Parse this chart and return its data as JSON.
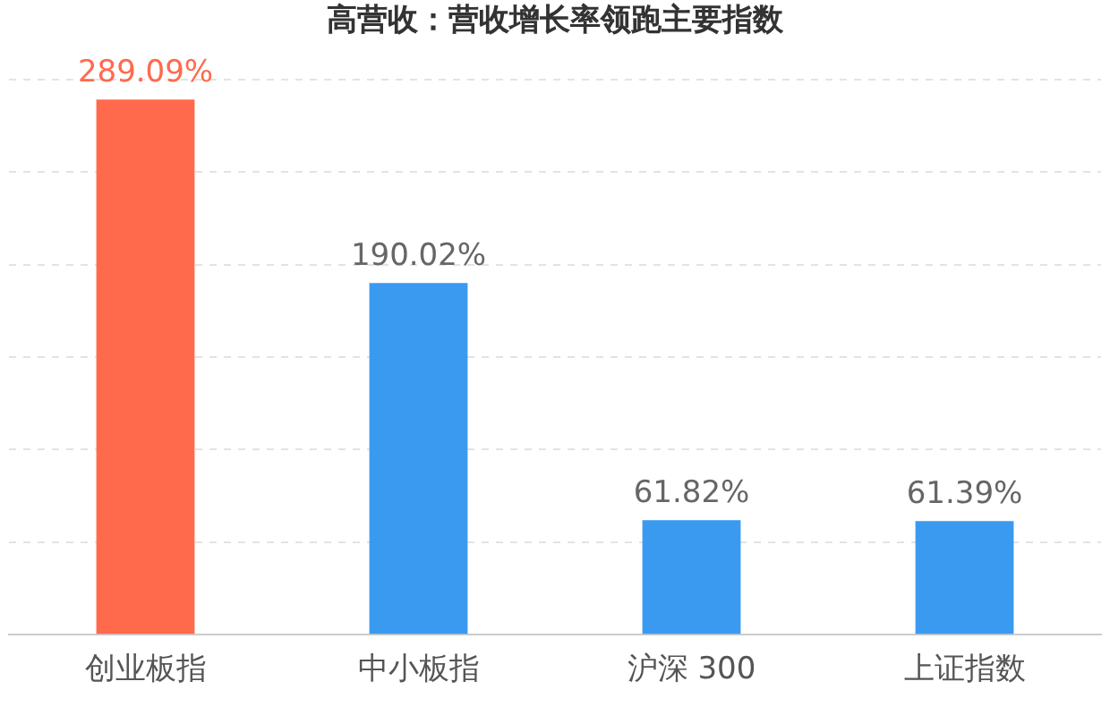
{
  "chart_data": {
    "type": "bar",
    "title": "高营收：营收增长率领跑主要指数",
    "categories": [
      "创业板指",
      "中小板指",
      "沪深 300",
      "上证指数"
    ],
    "values": [
      289.09,
      190.02,
      61.82,
      61.39
    ],
    "colors": [
      "#ff6a4d",
      "#3a9af0",
      "#3a9af0",
      "#3a9af0"
    ],
    "value_labels": [
      "289.09%",
      "190.02%",
      "61.82%",
      "61.39%"
    ],
    "grid": "y",
    "tick_labels": "x",
    "legend": false
  }
}
